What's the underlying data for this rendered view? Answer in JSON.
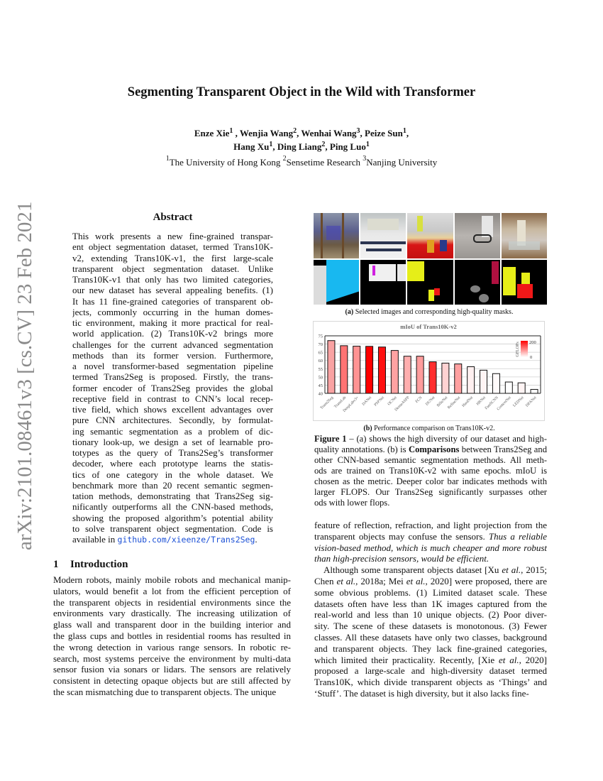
{
  "paper": {
    "title": "Segmenting Transparent Object in the Wild with Transformer",
    "authors": [
      [
        [
          "Enze Xie",
          ""
        ],
        [
          "1",
          "sup"
        ],
        [
          " , Wenjia Wang",
          ""
        ],
        [
          "2",
          "sup"
        ],
        [
          ", Wenhai Wang",
          ""
        ],
        [
          "3",
          "sup"
        ],
        [
          ", Peize Sun",
          ""
        ],
        [
          "1",
          "sup"
        ],
        [
          ",",
          ""
        ]
      ],
      [
        [
          "Hang Xu",
          ""
        ],
        [
          "1",
          "sup"
        ],
        [
          ", Ding Liang",
          ""
        ],
        [
          "2",
          "sup"
        ],
        [
          ", Ping Luo",
          ""
        ],
        [
          "1",
          "sup"
        ]
      ]
    ],
    "affiliations": [
      [
        [
          "1",
          "sup"
        ],
        [
          "The University of Hong Kong    ",
          ""
        ],
        [
          "2",
          "sup"
        ],
        [
          "Sensetime Research    ",
          ""
        ],
        [
          "3",
          "sup"
        ],
        [
          "Nanjing University",
          ""
        ]
      ]
    ],
    "arxiv_stamp": "arXiv:2101.08461v3  [cs.CV]  23 Feb 2021"
  },
  "abstract": {
    "heading": "Abstract",
    "paragraphs": [
      [
        "This work presents a new fine-grained transpar-",
        "ent object segmentation dataset, termed Trans10K-",
        "v2, extending Trans10K-v1, the first large-scale",
        "transparent object segmentation dataset.  Unlike",
        "Trans10K-v1 that only has two limited categories,",
        "our new dataset has several appealing benefits. (1)",
        "It has 11 fine-grained categories of transparent ob-",
        "jects, commonly occurring in the human domes-",
        "tic environment, making it more practical for real-",
        "world application.  (2) Trans10K-v2 brings more",
        "challenges for the current advanced segmentation",
        "methods than its former version.  Furthermore,",
        "a novel transformer-based segmentation pipeline",
        "termed Trans2Seg is proposed.  Firstly, the trans-",
        "former encoder of Trans2Seg provides the global",
        "receptive field in contrast to CNN’s local recep-",
        "tive field, which shows excellent advantages over",
        "pure CNN architectures.  Secondly, by formulat-",
        "ing semantic segmentation as a problem of dic-",
        "tionary look-up, we design a set of learnable pro-",
        "totypes as the query of Trans2Seg’s transformer",
        "decoder, where each prototype learns the statis-",
        "tics of one category in the whole dataset.  We",
        "benchmark more than 20 recent semantic segmen-",
        "tation methods, demonstrating that Trans2Seg sig-",
        "nificantly outperforms all the CNN-based methods,",
        "showing the proposed algorithm’s potential ability",
        "to solve transparent object segmentation.  Code is",
        [
          [
            "available in ",
            ""
          ],
          [
            "github.com/xieenze/Trans2Seg",
            "link"
          ],
          [
            ".",
            ""
          ]
        ]
      ]
    ]
  },
  "intro": {
    "number": "1",
    "heading": "Introduction",
    "paragraphs": [
      [
        "Modern robots, mainly mobile robots and mechanical manip-",
        "ulators, would benefit a lot from the efficient perception of",
        "the transparent objects in residential environments since the",
        "environments vary drastically.  The increasing utilization of",
        "glass wall and transparent door in the building interior and",
        "the glass cups and bottles in residential rooms has resulted in",
        "the wrong detection in various range sensors.  In robotic re-",
        "search, most systems perceive the environment by multi-data",
        "sensor fusion via sonars or lidars.  The sensors are relatively",
        "consistent in detecting opaque objects but are still affected by",
        "the scan mismatching due to transparent objects.  The unique"
      ]
    ]
  },
  "right_column": {
    "paragraphs": [
      [
        "feature of reflection, refraction, and light projection from the",
        [
          [
            "transparent objects may confuse the sensors.  ",
            ""
          ],
          [
            "Thus a reliable",
            "i"
          ]
        ],
        [
          [
            "vision-based method, which is much cheaper and more robust",
            "i"
          ]
        ],
        [
          [
            "than high-precision sensors, would be efficient.",
            "i"
          ]
        ]
      ],
      [
        [
          [
            "Although some transparent objects dataset [Xu ",
            ""
          ],
          [
            "et al.",
            "i"
          ],
          [
            ", 2015;",
            ""
          ]
        ],
        [
          [
            "Chen ",
            ""
          ],
          [
            "et al.",
            "i"
          ],
          [
            ", 2018a; Mei ",
            ""
          ],
          [
            "et al.",
            "i"
          ],
          [
            ", 2020] were proposed, there are",
            ""
          ]
        ],
        "some obvious problems.  (1) Limited dataset scale.  These",
        "datasets often have less than 1K images captured from the",
        "real-world and less than 10 unique objects.  (2) Poor diver-",
        "sity.  The scene of these datasets is monotonous.  (3) Fewer",
        "classes.  All these datasets have only two classes, background",
        "and transparent objects.  They lack fine-grained categories,",
        [
          [
            "which limited their practicality.  Recently, [Xie ",
            ""
          ],
          [
            "et al.",
            "i"
          ],
          [
            ", 2020]",
            ""
          ]
        ],
        "proposed a large-scale and high-diversity dataset termed",
        "Trans10K, which divide transparent objects as ‘Things’ and",
        "‘Stuff’.  The dataset is high diversity, but it also lacks fine-"
      ]
    ]
  },
  "figure": {
    "subcaption_a": [
      [
        "(a)",
        "b"
      ],
      [
        " Selected images and corresponding high-quality masks.",
        ""
      ]
    ],
    "subcaption_b": [
      [
        "(b)",
        "b"
      ],
      [
        " Performance comparison on Trans10K-v2.",
        ""
      ]
    ],
    "caption": [
      [
        [
          [
            "Figure 1",
            "b"
          ],
          [
            " –  (a) shows the high diversity of our dataset and high-",
            ""
          ]
        ],
        [
          [
            "quality annotations. (b) is ",
            ""
          ],
          [
            "Comparisons",
            "b"
          ],
          [
            " between Trans2Seg and",
            ""
          ]
        ],
        "other CNN-based semantic segmentation methods.  All meth-",
        "ods are trained on Trans10K-v2 with same epochs.  mIoU is",
        "chosen as the metric.  Deeper color bar indicates methods with",
        "larger FLOPS. Our Trans2Seg significantly surpasses other meth-",
        "ods with lower flops."
      ]
    ]
  },
  "chart_data": {
    "type": "bar",
    "title": "mIoU of Trans10K-v2",
    "xlabel": "",
    "ylabel": "",
    "ylim": [
      40,
      75
    ],
    "yticks": [
      40,
      45,
      50,
      55,
      60,
      65,
      70,
      75
    ],
    "grid": true,
    "categories": [
      "Trans2Seg",
      "TransLab",
      "DeepLabv3+",
      "DANet",
      "PSPNet",
      "OCNet",
      "DenseASPP",
      "FCN",
      "DUNet",
      "BiSeNet",
      "RefineNet",
      "HardNet",
      "HRNet",
      "FastSCNN",
      "ContextNet",
      "LEDNet",
      "DFANet"
    ],
    "values": [
      72.1,
      69.0,
      68.7,
      68.6,
      68.2,
      66.1,
      62.6,
      62.6,
      59.2,
      58.4,
      57.9,
      56.2,
      54.1,
      52.0,
      46.9,
      46.4,
      42.4
    ],
    "bar_colors": [
      "#f9a3a3",
      "#ff7373",
      "#ff9393",
      "#ff0000",
      "#ff1010",
      "#ffa2a2",
      "#ffaeae",
      "#ff9c9c",
      "#ff2e2e",
      "#ffd2d2",
      "#ffa0a0",
      "#fff0f0",
      "#fff4f4",
      "#fffafa",
      "#ffffff",
      "#fff4f4",
      "#ffffff"
    ],
    "colorbar": {
      "label": "GFLOPs",
      "max_label": "200",
      "min_label": "0",
      "max_color": "#ff0000",
      "min_color": "#ffffff"
    },
    "legend": "top-right"
  }
}
